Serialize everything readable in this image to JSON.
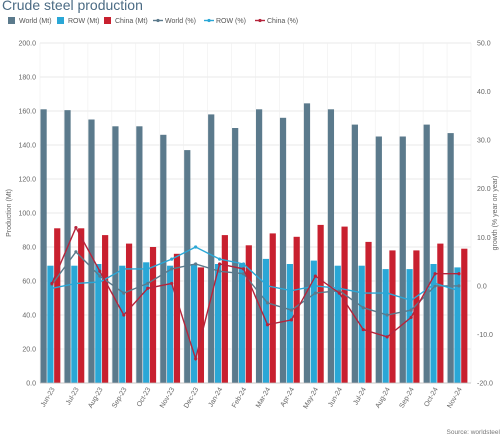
{
  "title": "Crude steel production",
  "source": "Source: worldsteel",
  "colors": {
    "world_bar": "#5b7a8c",
    "row_bar": "#2aa7d6",
    "china_bar": "#c8202f",
    "world_line": "#5b7a8c",
    "row_line": "#2aa7d6",
    "china_line": "#b5243b",
    "grid": "#e2e2e2"
  },
  "chart_data": {
    "type": "bar",
    "title": "Crude steel production",
    "ylabel": "Production (Mt)",
    "y2label": "growth (% year on year)",
    "ylim": [
      0,
      200
    ],
    "y2lim": [
      -20,
      50
    ],
    "yticks": [
      "0.0",
      "20.0",
      "40.0",
      "60.0",
      "80.0",
      "100.0",
      "120.0",
      "140.0",
      "160.0",
      "180.0",
      "200.0"
    ],
    "y2ticks": [
      "-20.0",
      "-10.0",
      "0.0",
      "10.0",
      "20.0",
      "30.0",
      "40.0",
      "50.0"
    ],
    "grid": true,
    "legend_position": "top",
    "categories": [
      "Jun-23",
      "Jul-23",
      "Aug-23",
      "Sep-23",
      "Oct-23",
      "Nov-23",
      "Dec-23",
      "Jan-24",
      "Feb-24",
      "Mar-24",
      "Apr-24",
      "May-24",
      "Jun-24",
      "Jul-24",
      "Aug-24",
      "Sep-24",
      "Oct-24",
      "Nov-24"
    ],
    "series": [
      {
        "name": "World (Mt)",
        "type": "bar",
        "axis": "left",
        "values": [
          161,
          160.5,
          155,
          151,
          151,
          146,
          137,
          158,
          150,
          161,
          156,
          164.5,
          161,
          152,
          145,
          145,
          152,
          147
        ]
      },
      {
        "name": "ROW (Mt)",
        "type": "bar",
        "axis": "left",
        "values": [
          69,
          69,
          70,
          69,
          71,
          69,
          70,
          70,
          70,
          73,
          70,
          72,
          69,
          69,
          67,
          67,
          70,
          68
        ]
      },
      {
        "name": "China (Mt)",
        "type": "bar",
        "axis": "left",
        "values": [
          91,
          91,
          87,
          82,
          80,
          76,
          68,
          87,
          81,
          88,
          86,
          93,
          92,
          83,
          78,
          78,
          82,
          79
        ]
      },
      {
        "name": "World (%)",
        "type": "line",
        "axis": "right",
        "values": [
          0.3,
          7.0,
          2.0,
          -1.5,
          0.5,
          3.5,
          4.5,
          3.0,
          2.5,
          -3.5,
          -5.0,
          -1.5,
          -1.0,
          -4.5,
          -6.0,
          -5.0,
          0.0,
          0.0
        ]
      },
      {
        "name": "ROW (%)",
        "type": "line",
        "axis": "right",
        "values": [
          -0.5,
          0.5,
          0.8,
          3.5,
          3.5,
          5.5,
          8.0,
          5.5,
          4.5,
          0.0,
          -1.0,
          0.0,
          -0.5,
          -1.5,
          -1.5,
          -3.0,
          0.5,
          -1.0
        ]
      },
      {
        "name": "China (%)",
        "type": "line",
        "axis": "right",
        "values": [
          0.5,
          12.0,
          3.0,
          -6.0,
          -0.5,
          0.5,
          -15.0,
          4.5,
          3.5,
          -8.0,
          -7.0,
          2.0,
          -1.5,
          -9.0,
          -10.5,
          -6.5,
          2.5,
          2.5
        ]
      }
    ]
  }
}
